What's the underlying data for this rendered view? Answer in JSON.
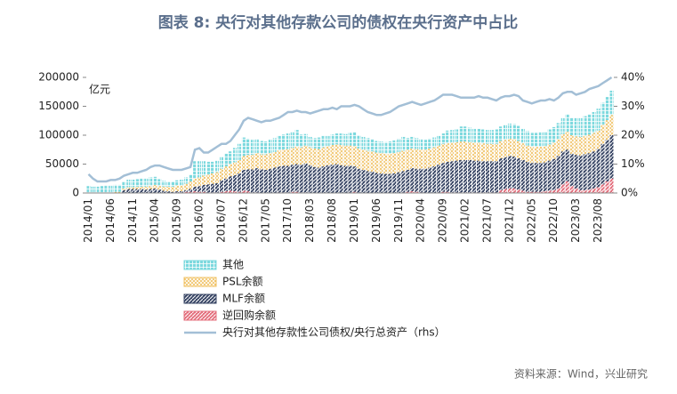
{
  "chart_data": {
    "type": "stacked_bar_line",
    "title": "图表 8:  央行对其他存款公司的债权在央行资产中占比",
    "y_axis_label": "亿元",
    "source": "资料来源：Wind，兴业研究",
    "categories": [
      "2014/01",
      null,
      null,
      null,
      null,
      "2014/06",
      null,
      null,
      null,
      null,
      "2014/11",
      null,
      null,
      null,
      null,
      "2015/04",
      null,
      null,
      null,
      null,
      "2015/09",
      null,
      null,
      null,
      null,
      "2016/02",
      null,
      null,
      null,
      null,
      "2016/07",
      null,
      null,
      null,
      null,
      "2016/12",
      null,
      null,
      null,
      null,
      "2017/05",
      null,
      null,
      null,
      null,
      "2017/10",
      null,
      null,
      null,
      null,
      "2018/03",
      null,
      null,
      null,
      null,
      "2018/08",
      null,
      null,
      null,
      null,
      "2019/01",
      null,
      null,
      null,
      null,
      "2019/06",
      null,
      null,
      null,
      null,
      "2019/11",
      null,
      null,
      null,
      null,
      "2020/04",
      null,
      null,
      null,
      null,
      "2020/09",
      null,
      null,
      null,
      null,
      "2021/02",
      null,
      null,
      null,
      null,
      "2021/07",
      null,
      null,
      null,
      null,
      "2021/12",
      null,
      null,
      null,
      null,
      "2022/05",
      null,
      null,
      null,
      null,
      "2022/10",
      null,
      null,
      null,
      null,
      "2023/03",
      null,
      null,
      null,
      null,
      "2023/08",
      null,
      null,
      null
    ],
    "ylim": [
      0,
      200000
    ],
    "yticks": [
      0,
      50000,
      100000,
      150000,
      200000
    ],
    "y2lim": [
      0,
      40
    ],
    "y2ticks": [
      {
        "value": 0,
        "label": "0%"
      },
      {
        "value": 10,
        "label": "10%"
      },
      {
        "value": 20,
        "label": "20%"
      },
      {
        "value": 30,
        "label": "30%"
      },
      {
        "value": 40,
        "label": "40%"
      }
    ],
    "series": [
      {
        "name": "其他",
        "color": "#7dd9de",
        "values": [
          12000,
          11000,
          11000,
          12000,
          12000,
          12000,
          12000,
          12000,
          12000,
          13000,
          13000,
          13000,
          14000,
          14000,
          15000,
          14000,
          12000,
          10000,
          9000,
          9000,
          9000,
          10000,
          11000,
          12000,
          30000,
          28000,
          25000,
          22000,
          20000,
          20000,
          21000,
          22000,
          22000,
          25000,
          28000,
          32000,
          28000,
          26000,
          24000,
          23000,
          22000,
          23000,
          24000,
          25000,
          26000,
          27000,
          28000,
          29000,
          22000,
          20000,
          18000,
          18000,
          20000,
          20000,
          18000,
          18000,
          19000,
          20000,
          20000,
          22000,
          24000,
          23000,
          22000,
          22000,
          21000,
          20000,
          20000,
          20000,
          21000,
          22000,
          23000,
          24000,
          20000,
          20000,
          19000,
          18000,
          17000,
          17000,
          17000,
          17000,
          18000,
          22000,
          22000,
          22000,
          26000,
          26000,
          25000,
          24000,
          24000,
          24000,
          24000,
          24000,
          25000,
          25000,
          26000,
          26000,
          26000,
          26000,
          25000,
          25000,
          24000,
          24000,
          25000,
          25000,
          26000,
          27000,
          28000,
          28000,
          30000,
          30000,
          32000,
          33000,
          34000,
          35000,
          36000,
          38000,
          38000,
          40000,
          42000
        ]
      },
      {
        "name": "PSL余额",
        "color": "#f0c060",
        "values": [
          0,
          0,
          0,
          0,
          1000,
          1000,
          2000,
          2000,
          3000,
          3000,
          3000,
          4000,
          4000,
          5000,
          5000,
          6000,
          6000,
          7000,
          8000,
          9000,
          10000,
          10000,
          11000,
          13000,
          14000,
          15000,
          16000,
          17000,
          18000,
          19000,
          20000,
          21000,
          21000,
          22000,
          23000,
          24000,
          25000,
          25000,
          26000,
          26000,
          27000,
          27000,
          27000,
          28000,
          28000,
          29000,
          29000,
          30000,
          30000,
          31000,
          31000,
          32000,
          32000,
          33000,
          33000,
          34000,
          34000,
          35000,
          35000,
          35000,
          35000,
          35000,
          35000,
          35000,
          35000,
          35000,
          35000,
          35000,
          35000,
          35000,
          35000,
          35000,
          35000,
          34000,
          34000,
          33000,
          33000,
          33000,
          33000,
          33000,
          33000,
          32000,
          32000,
          32000,
          32000,
          32000,
          31000,
          31000,
          31000,
          31000,
          30000,
          30000,
          30000,
          30000,
          30000,
          30000,
          30000,
          30000,
          29000,
          28000,
          28000,
          28000,
          28000,
          28000,
          28000,
          28000,
          29000,
          30000,
          31000,
          32000,
          32000,
          32000,
          32000,
          32000,
          32000,
          32000,
          33000,
          34000,
          35000
        ]
      },
      {
        "name": "MLF余额",
        "color": "#3a4766",
        "values": [
          0,
          0,
          0,
          0,
          0,
          0,
          0,
          0,
          5000,
          7000,
          7000,
          7000,
          7000,
          6000,
          7000,
          8000,
          6000,
          4000,
          3000,
          2000,
          2000,
          2000,
          3000,
          5000,
          8000,
          10000,
          12000,
          14000,
          15000,
          16000,
          20000,
          22000,
          25000,
          28000,
          32000,
          36000,
          38000,
          40000,
          42000,
          41000,
          40000,
          42000,
          44000,
          45000,
          46000,
          46000,
          47000,
          48000,
          48000,
          50000,
          48000,
          45000,
          44000,
          46000,
          48000,
          49000,
          50000,
          48000,
          47000,
          46000,
          44000,
          42000,
          40000,
          38000,
          37000,
          35000,
          34000,
          33000,
          33000,
          34000,
          36000,
          37000,
          38000,
          40000,
          40000,
          41000,
          42000,
          44000,
          46000,
          48000,
          50000,
          52000,
          54000,
          55000,
          56000,
          56000,
          56000,
          55000,
          55000,
          54000,
          54000,
          54000,
          54000,
          55000,
          55000,
          56000,
          55000,
          54000,
          53000,
          52000,
          50000,
          50000,
          50000,
          50000,
          52000,
          54000,
          56000,
          57000,
          55000,
          56000,
          58000,
          60000,
          62000,
          63000,
          64000,
          66000,
          70000,
          72000,
          75000
        ]
      },
      {
        "name": "逆回购余额",
        "color": "#e4707e",
        "values": [
          0,
          0,
          0,
          0,
          0,
          0,
          0,
          0,
          0,
          0,
          0,
          0,
          0,
          0,
          0,
          0,
          0,
          0,
          0,
          0,
          1000,
          1000,
          2000,
          2000,
          3000,
          2000,
          2000,
          1000,
          1000,
          1000,
          2000,
          3000,
          4000,
          3000,
          2000,
          4000,
          3000,
          1000,
          1000,
          0,
          0,
          0,
          0,
          1000,
          1000,
          1000,
          2000,
          2000,
          1000,
          1000,
          0,
          0,
          0,
          0,
          0,
          0,
          0,
          0,
          0,
          1000,
          2000,
          0,
          0,
          0,
          0,
          0,
          0,
          0,
          0,
          0,
          0,
          1000,
          2000,
          3000,
          2000,
          1000,
          0,
          0,
          0,
          1000,
          2000,
          2000,
          1000,
          1000,
          1000,
          1000,
          1000,
          1000,
          1000,
          1000,
          1000,
          1000,
          1000,
          5000,
          7000,
          8000,
          8000,
          6000,
          4000,
          2000,
          2000,
          2000,
          2000,
          3000,
          4000,
          5000,
          8000,
          15000,
          20000,
          12000,
          8000,
          5000,
          5000,
          6000,
          8000,
          10000,
          15000,
          20000,
          25000
        ]
      },
      {
        "name": "央行对其他存款性公司债权/央行总资产（rhs）",
        "color": "#a3bfd6",
        "axis": "y2",
        "values": [
          6.5,
          5,
          4,
          4,
          4,
          4.5,
          4.5,
          5,
          6,
          6.5,
          7,
          7,
          7.5,
          8,
          9,
          9.5,
          9.5,
          9,
          8.5,
          8,
          8,
          8,
          8.5,
          9,
          15,
          15.5,
          14,
          14,
          15,
          16,
          17,
          17,
          18,
          20,
          22,
          25,
          26,
          25.5,
          25,
          24.5,
          25,
          25,
          25.5,
          26,
          27,
          28,
          28,
          28.5,
          28,
          28,
          27.5,
          28,
          28.5,
          29,
          29,
          29.5,
          29,
          30,
          30,
          30,
          30.5,
          30,
          29,
          28,
          27.5,
          27,
          27,
          27.5,
          28,
          29,
          30,
          30.5,
          31,
          31.5,
          31,
          30.5,
          31,
          31.5,
          32,
          33,
          34,
          34,
          34,
          33.5,
          33,
          33,
          33,
          33,
          33.5,
          33,
          33,
          32.5,
          32,
          33,
          33.5,
          33.5,
          34,
          33.5,
          32,
          31.5,
          31,
          31.5,
          32,
          32,
          32.5,
          32,
          33,
          34.5,
          35,
          35,
          34,
          34.5,
          35,
          36,
          36.5,
          37,
          38,
          39,
          40
        ]
      }
    ]
  }
}
